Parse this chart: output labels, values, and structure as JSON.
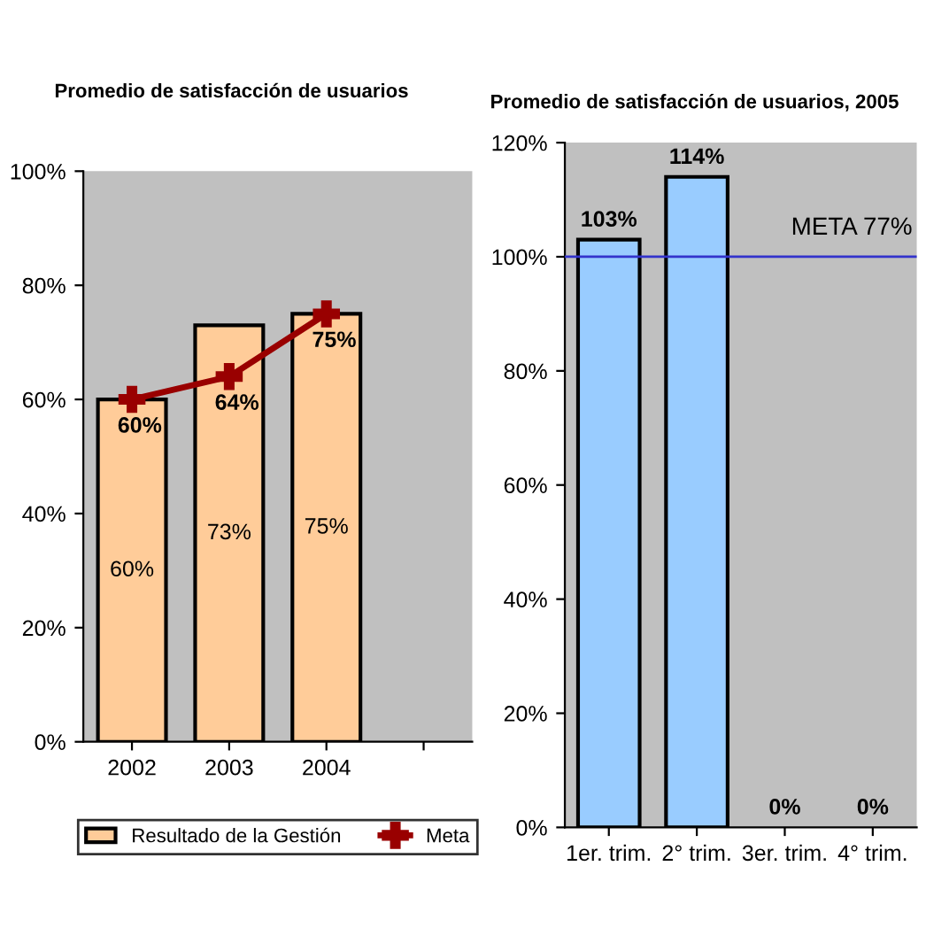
{
  "chart_data": [
    {
      "type": "bar",
      "title": "Promedio de satisfacción de usuarios",
      "categories": [
        "2002",
        "2003",
        "2004",
        null
      ],
      "ylim": [
        0,
        100
      ],
      "yticks": [
        {
          "value": 0,
          "label": "0%"
        },
        {
          "value": 20,
          "label": "20%"
        },
        {
          "value": 40,
          "label": "40%"
        },
        {
          "value": 60,
          "label": "60%"
        },
        {
          "value": 80,
          "label": "80%"
        },
        {
          "value": 100,
          "label": "100%"
        }
      ],
      "grid": false,
      "legend": "bottom",
      "series": [
        {
          "name": "Resultado de la Gestión",
          "color": "#ffcc99",
          "values": [
            60,
            73,
            75,
            null
          ],
          "value_labels": [
            "60%",
            "73%",
            "75%",
            null
          ]
        },
        {
          "name": "Meta",
          "type": "line",
          "color": "#990000",
          "marker": "cross",
          "values": [
            60,
            64,
            75,
            null
          ],
          "value_labels": [
            "60%",
            "64%",
            "75%",
            null
          ]
        }
      ]
    },
    {
      "type": "bar",
      "title": "Promedio de satisfacción de usuarios, 2005",
      "categories": [
        "1er. trim.",
        "2° trim.",
        "3er. trim.",
        "4° trim."
      ],
      "ylim": [
        0,
        120
      ],
      "yticks": [
        {
          "value": 0,
          "label": "0%"
        },
        {
          "value": 20,
          "label": "20%"
        },
        {
          "value": 40,
          "label": "40%"
        },
        {
          "value": 60,
          "label": "60%"
        },
        {
          "value": 80,
          "label": "80%"
        },
        {
          "value": 100,
          "label": "100%"
        },
        {
          "value": 120,
          "label": "120%"
        }
      ],
      "grid": false,
      "series": [
        {
          "color": "#99ccff",
          "values": [
            103,
            114,
            0,
            0
          ],
          "value_labels": [
            "103%",
            "114%",
            "0%",
            "0%"
          ]
        }
      ],
      "ref_lines": [
        {
          "axis": "y",
          "value": 100,
          "label": "META 77%",
          "color": "#3333cc",
          "line_style": "solid"
        }
      ]
    }
  ]
}
